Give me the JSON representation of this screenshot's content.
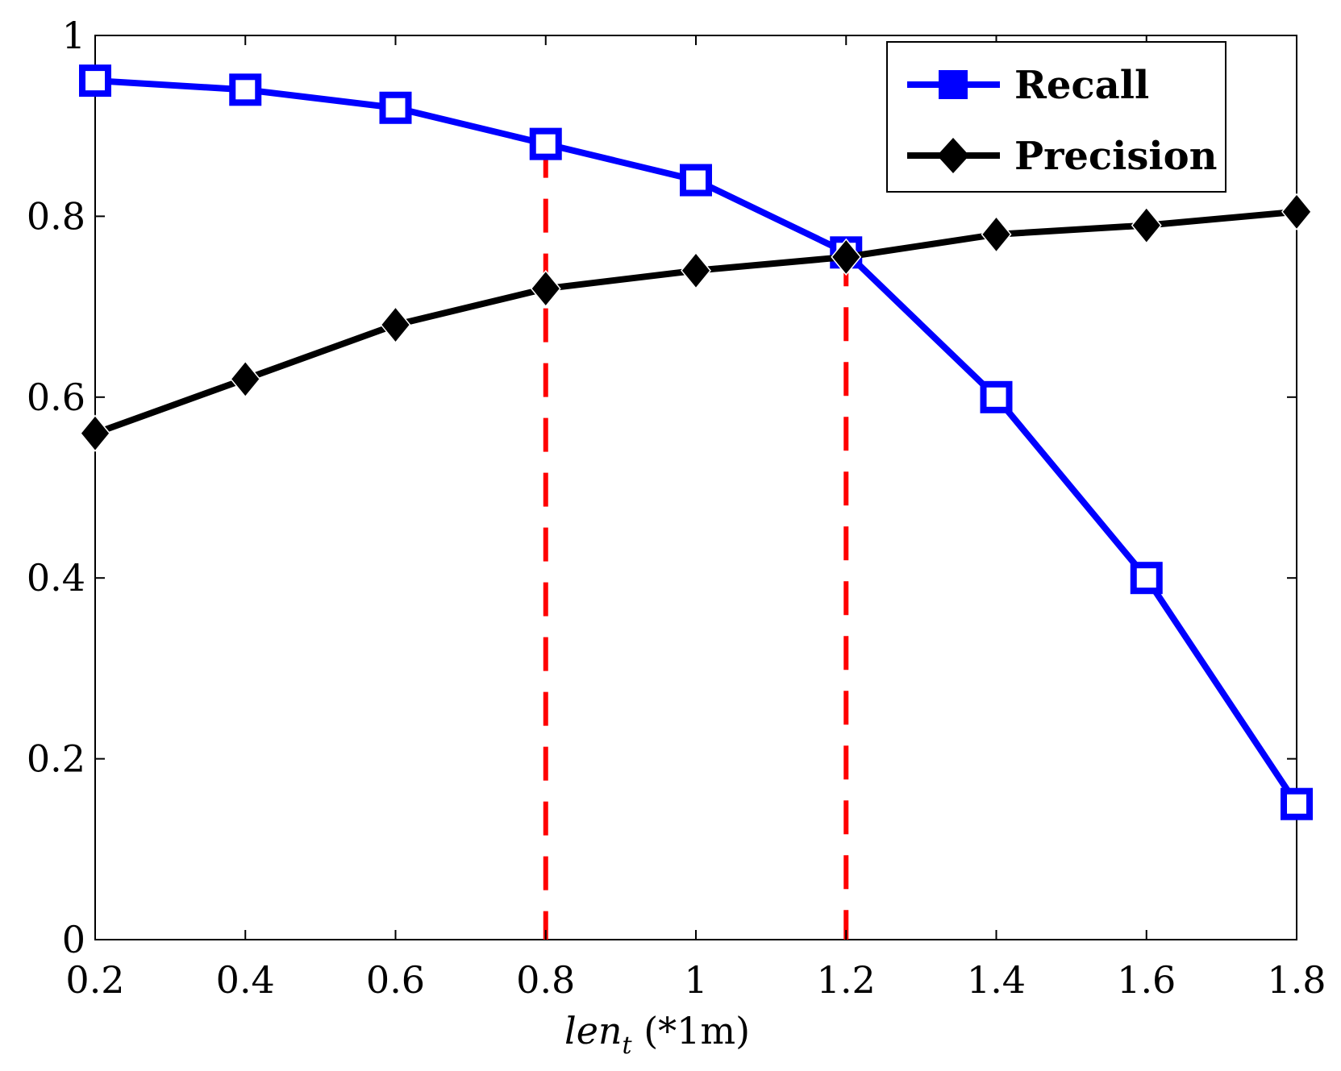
{
  "chart_data": {
    "type": "line",
    "title": "",
    "xlabel_main": "len",
    "xlabel_sub": "t",
    "xlabel_unit": " (*1m)",
    "ylabel": "",
    "x": [
      0.2,
      0.4,
      0.6,
      0.8,
      1.0,
      1.2,
      1.4,
      1.6,
      1.8
    ],
    "xlim": [
      0.2,
      1.8
    ],
    "ylim": [
      0,
      1
    ],
    "x_ticks": [
      "0.2",
      "0.4",
      "0.6",
      "0.8",
      "1",
      "1.2",
      "1.4",
      "1.6",
      "1.8"
    ],
    "y_ticks": [
      "0",
      "0.2",
      "0.4",
      "0.6",
      "0.8",
      "1"
    ],
    "x_tick_values": [
      0.2,
      0.4,
      0.6,
      0.8,
      1.0,
      1.2,
      1.4,
      1.6,
      1.8
    ],
    "y_tick_values": [
      0,
      0.2,
      0.4,
      0.6,
      0.8,
      1.0
    ],
    "grid": false,
    "legend_position": "top-right",
    "series": [
      {
        "name": "Recall",
        "color": "#0000ff",
        "marker": "square",
        "values": [
          0.95,
          0.94,
          0.92,
          0.88,
          0.84,
          0.76,
          0.6,
          0.4,
          0.15
        ]
      },
      {
        "name": "Precision",
        "color": "#000000",
        "marker": "diamond",
        "values": [
          0.56,
          0.62,
          0.68,
          0.72,
          0.74,
          0.755,
          0.78,
          0.79,
          0.805
        ]
      }
    ],
    "reference_lines": [
      {
        "x": 0.8,
        "y_top": 0.88,
        "color": "#ff0000",
        "style": "dashed"
      },
      {
        "x": 1.2,
        "y_top": 0.76,
        "color": "#ff0000",
        "style": "dashed"
      }
    ]
  }
}
